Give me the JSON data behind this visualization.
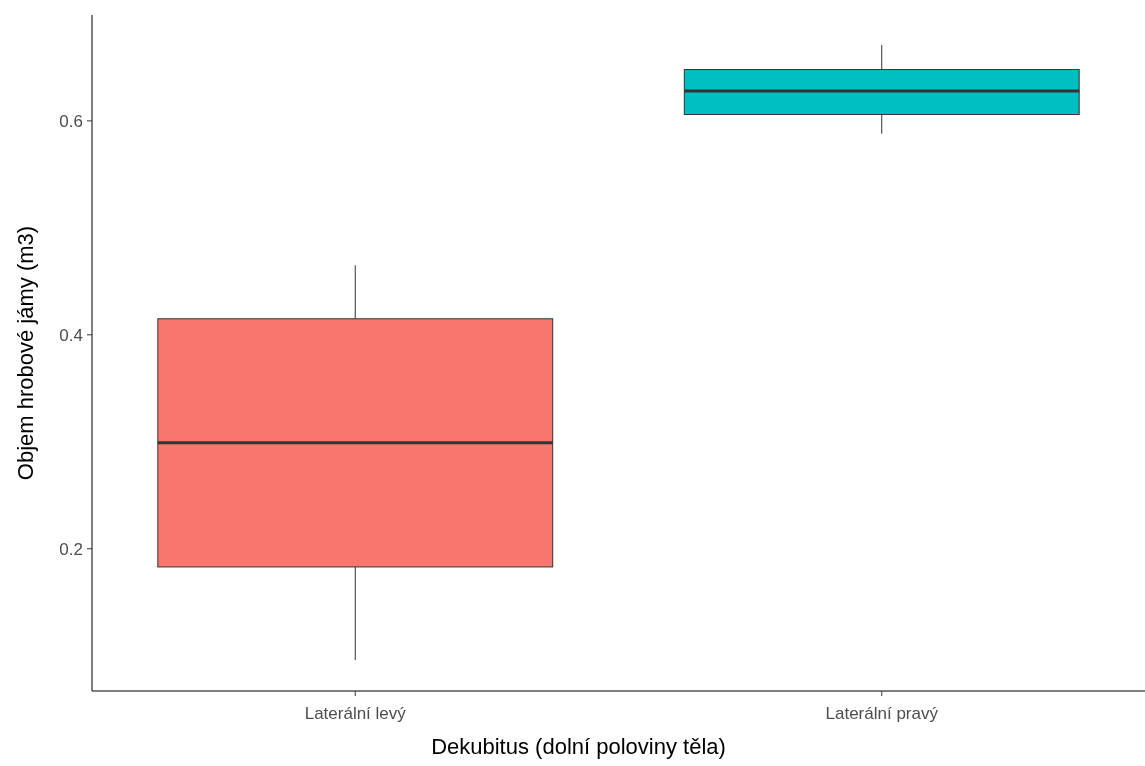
{
  "chart_data": {
    "type": "box",
    "xlabel": "Dekubitus (dolní poloviny těla)",
    "ylabel": "Objem hrobové jámy (m3)",
    "categories": [
      "Laterální levý",
      "Laterální pravý"
    ],
    "colors": [
      "#f8766d",
      "#00bfc4"
    ],
    "boxes": [
      {
        "low": 0.096,
        "q1": 0.183,
        "median": 0.299,
        "q3": 0.415,
        "high": 0.465
      },
      {
        "low": 0.588,
        "q1": 0.606,
        "median": 0.628,
        "q3": 0.648,
        "high": 0.671
      }
    ],
    "ylim": [
      0.067,
      0.699
    ],
    "yticks": [
      0.2,
      0.4,
      0.6
    ]
  }
}
